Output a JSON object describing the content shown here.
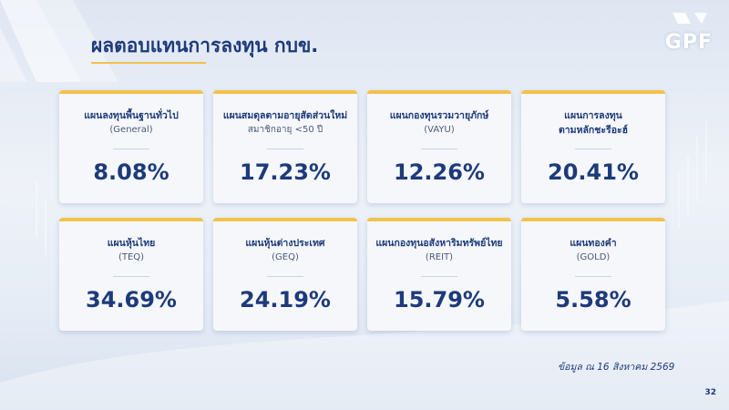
{
  "header": {
    "title": "ผลตอบแทนการลงทุน กบข.",
    "logo": "GPF"
  },
  "cards": [
    {
      "title": [
        "แผนลงทุนพื้นฐานทั่วไป"
      ],
      "subtitle": "(General)",
      "value": "8.08%"
    },
    {
      "title": [
        "แผนสมดุลตามอายุสัดส่วนใหม่"
      ],
      "subtitle": "สมาชิกอายุ <50 ปี",
      "value": "17.23%"
    },
    {
      "title": [
        "แผนกองทุนรวมวายุภักษ์"
      ],
      "subtitle": "(VAYU)",
      "value": "12.26%"
    },
    {
      "title": [
        "แผนการลงทุน",
        "ตามหลักชะรีอะฮ์"
      ],
      "value": "20.41%"
    },
    {
      "title": [
        "แผนหุ้นไทย"
      ],
      "subtitle": "(TEQ)",
      "value": "34.69%"
    },
    {
      "title": [
        "แผนหุ้นต่างประเทศ"
      ],
      "subtitle": "(GEQ)",
      "value": "24.19%"
    },
    {
      "title": [
        "แผนกองทุนอสังหาริมทรัพย์ไทย"
      ],
      "subtitle": "(REIT)",
      "value": "15.79%"
    },
    {
      "title": [
        "แผนทองคำ"
      ],
      "subtitle": "(GOLD)",
      "value": "5.58%"
    }
  ],
  "footer": {
    "note": "ข้อมูล ณ 16 สิงหาคม 2569",
    "page": "32"
  }
}
